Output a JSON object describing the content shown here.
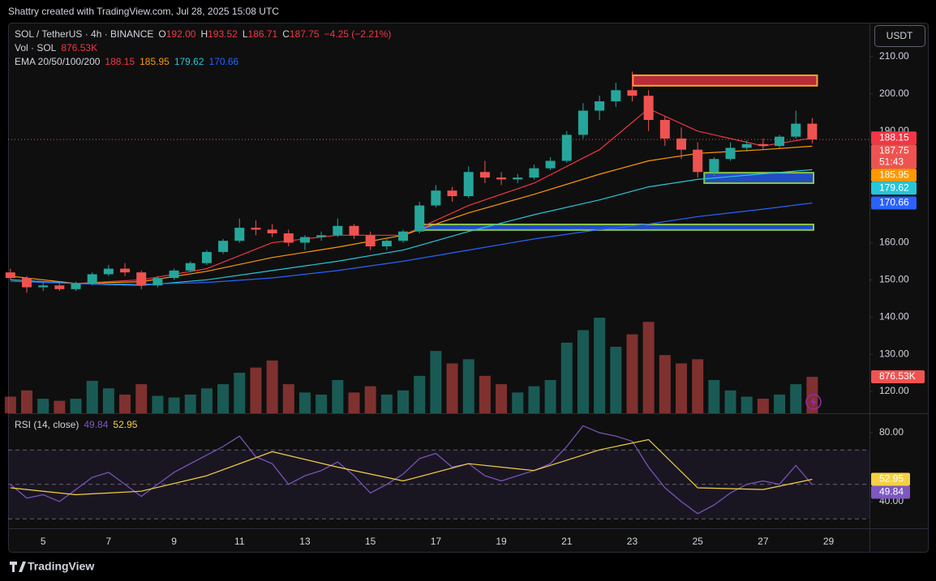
{
  "header": {
    "credit": "Shattry created with TradingView.com, Jul 28, 2025 15:08 UTC"
  },
  "toolbar": {
    "currency": "USDT"
  },
  "footer": {
    "brand": "TradingView"
  },
  "chart_data": [
    {
      "type": "candlestick",
      "legend": {
        "symbol": "SOL / TetherUS · 4h · BINANCE",
        "ohlc": [
          {
            "key": "O",
            "value": "192.00"
          },
          {
            "key": "H",
            "value": "193.52"
          },
          {
            "key": "L",
            "value": "186.71"
          },
          {
            "key": "C",
            "value": "187.75"
          }
        ],
        "change": "−4.25 (−2.21%)",
        "volume_label": "Vol · SOL",
        "ema_label": "EMA 20/50/100/200"
      },
      "countdown": "51:43",
      "xlim": [
        3.93,
        30.25
      ],
      "xticks": [
        5,
        7,
        9,
        11,
        13,
        15,
        17,
        19,
        21,
        23,
        25,
        27,
        29
      ],
      "ylim": [
        114.12,
        219.15
      ],
      "yticks": [
        {
          "value": 120,
          "label": "120.00"
        },
        {
          "value": 130,
          "label": "130.00"
        },
        {
          "value": 140,
          "label": "140.00"
        },
        {
          "value": 150,
          "label": "150.00"
        },
        {
          "value": 160,
          "label": "160.00"
        },
        {
          "value": 170,
          "label": "170.00"
        },
        {
          "value": 180,
          "label": "180.00"
        },
        {
          "value": 190,
          "label": "190.00"
        },
        {
          "value": 200,
          "label": "200.00"
        },
        {
          "value": 210,
          "label": "210.00"
        }
      ],
      "grid": false,
      "up_color": "#26a69a",
      "down_color": "#ef5350",
      "x": [
        4,
        4.5,
        5,
        5.5,
        6,
        6.5,
        7,
        7.5,
        8,
        8.5,
        9,
        9.5,
        10,
        10.5,
        11,
        11.5,
        12,
        12.5,
        13,
        13.5,
        14,
        14.5,
        15,
        15.5,
        16,
        16.5,
        17,
        17.5,
        18,
        18.5,
        19,
        19.5,
        20,
        20.5,
        21,
        21.5,
        22,
        22.5,
        23,
        23.5,
        24,
        24.5,
        25,
        25.5,
        26,
        26.5,
        27,
        27.5,
        28,
        28.5
      ],
      "candles": [
        [
          152,
          153,
          150,
          150.5
        ],
        [
          150.5,
          151,
          146.5,
          148
        ],
        [
          148,
          149.5,
          147,
          148.5
        ],
        [
          148.5,
          149,
          147,
          147.5
        ],
        [
          147.5,
          149.5,
          147,
          149
        ],
        [
          149,
          152,
          148.5,
          151.5
        ],
        [
          151.5,
          154,
          151,
          153
        ],
        [
          153,
          154.5,
          151,
          152
        ],
        [
          152,
          152.5,
          147.5,
          148.5
        ],
        [
          148.5,
          151,
          148,
          150.5
        ],
        [
          150.5,
          153,
          150,
          152.5
        ],
        [
          152.5,
          155,
          152,
          154.5
        ],
        [
          154.5,
          158,
          154,
          157.5
        ],
        [
          157.5,
          161,
          157,
          160.5
        ],
        [
          160.5,
          166.5,
          160,
          164
        ],
        [
          164,
          166,
          162,
          163.5
        ],
        [
          163.5,
          165,
          161.5,
          162.5
        ],
        [
          162.5,
          163.5,
          159,
          160
        ],
        [
          160,
          162,
          158,
          161.5
        ],
        [
          161.5,
          163,
          160.5,
          162
        ],
        [
          162,
          166.5,
          161.5,
          164.5
        ],
        [
          164.5,
          165,
          161,
          162
        ],
        [
          162,
          163,
          158,
          159
        ],
        [
          159,
          161,
          158,
          160.5
        ],
        [
          160.5,
          163.5,
          160,
          163
        ],
        [
          163,
          171,
          162.5,
          170
        ],
        [
          170,
          175.5,
          169.5,
          174
        ],
        [
          174,
          175,
          171,
          172.5
        ],
        [
          172.5,
          180.5,
          172,
          179
        ],
        [
          179,
          182,
          176,
          177.5
        ],
        [
          177.5,
          179,
          175.5,
          177
        ],
        [
          177,
          178.5,
          176,
          177.5
        ],
        [
          177.5,
          181,
          177,
          180
        ],
        [
          180,
          183,
          179.5,
          182
        ],
        [
          182,
          190,
          181.5,
          189
        ],
        [
          189,
          197.5,
          188,
          195.5
        ],
        [
          195.5,
          199.5,
          193,
          198
        ],
        [
          198,
          203,
          196.5,
          201
        ],
        [
          201,
          206,
          198,
          199.5
        ],
        [
          199.5,
          201,
          190,
          193
        ],
        [
          193,
          194,
          186,
          188
        ],
        [
          188,
          191,
          182.5,
          185
        ],
        [
          185,
          187,
          177.5,
          179
        ],
        [
          179,
          183,
          178,
          182.5
        ],
        [
          182.5,
          187,
          182,
          185.5
        ],
        [
          185.5,
          187.5,
          184.5,
          186.5
        ],
        [
          186.5,
          188,
          185,
          186
        ],
        [
          186,
          189,
          185.5,
          188.5
        ],
        [
          188.5,
          195.5,
          188,
          192
        ],
        [
          192,
          193.52,
          186.71,
          187.75
        ]
      ],
      "volume": {
        "lim": [
          0,
          9400
        ],
        "values": [
          400,
          550,
          350,
          300,
          350,
          780,
          600,
          450,
          700,
          420,
          380,
          450,
          600,
          700,
          975,
          1100,
          1270,
          700,
          500,
          450,
          800,
          500,
          650,
          450,
          550,
          900,
          1500,
          1200,
          1300,
          900,
          700,
          500,
          650,
          800,
          1700,
          2000,
          2300,
          1600,
          1900,
          2200,
          1400,
          1200,
          1300,
          800,
          550,
          400,
          350,
          450,
          700,
          876.53
        ],
        "last_label": "876.53K"
      },
      "ema": {
        "x": [
          4,
          6,
          8,
          10,
          12,
          14,
          16,
          18,
          20,
          22,
          23.5,
          25,
          27,
          28.5
        ],
        "series": [
          {
            "color": "#f23645",
            "values": [
              150,
              149,
              150,
              153,
              160,
              162,
              162,
              170,
              176,
              185,
              196,
              190,
              186,
              188.15
            ]
          },
          {
            "color": "#ff9800",
            "values": [
              151,
              149,
              149.5,
              152.3,
              156,
              158.8,
              162,
              168,
              173,
              178.4,
              182,
              184,
              185,
              185.95
            ]
          },
          {
            "color": "#26c6da",
            "values": [
              150,
              149,
              148.5,
              150,
              152.5,
              155,
              158,
              163,
              167.5,
              171.5,
              175,
              177,
              178.5,
              179.62
            ]
          },
          {
            "color": "#2962ff",
            "values": [
              149.6,
              149,
              148.8,
              149.3,
              150.5,
              152.5,
              155,
              158,
              161,
              163.5,
              165,
              167,
              169,
              170.66
            ]
          }
        ]
      },
      "zones": [
        {
          "x": [
            23.02,
            28.65
          ],
          "y": [
            205.0,
            202.2
          ],
          "fill": "rgba(242,54,69,0.75)",
          "stroke": "#f5a623"
        },
        {
          "x": [
            25.2,
            28.54
          ],
          "y": [
            178.8,
            176.0
          ],
          "fill": "rgba(41,98,255,0.75)",
          "stroke": "#8bc34a"
        },
        {
          "x": [
            16.4,
            28.54
          ],
          "y": [
            164.9,
            163.4
          ],
          "fill": "rgba(41,98,255,0.75)",
          "stroke": "#8bc34a"
        }
      ]
    },
    {
      "type": "line",
      "label": "RSI (14, close)",
      "xlim": [
        3.93,
        30.25
      ],
      "ylim": [
        24.47,
        90.35
      ],
      "yticks": [
        {
          "value": 80,
          "label": "80.00"
        },
        {
          "value": 40,
          "label": "40.00"
        }
      ],
      "band": [
        30,
        70
      ],
      "midline": 50,
      "series": [
        {
          "color": "#7e57c2",
          "x": [
            4,
            4.5,
            5,
            5.5,
            6,
            6.5,
            7,
            7.5,
            8,
            8.5,
            9,
            9.5,
            10,
            10.5,
            11,
            11.5,
            12,
            12.5,
            13,
            13.5,
            14,
            14.5,
            15,
            15.5,
            16,
            16.5,
            17,
            17.5,
            18,
            18.5,
            19,
            19.5,
            20,
            20.5,
            21,
            21.5,
            22,
            22.5,
            23,
            23.5,
            24,
            24.5,
            25,
            25.5,
            26,
            26.5,
            27,
            27.5,
            28,
            28.5
          ],
          "values": [
            50,
            42,
            44,
            40,
            47,
            54,
            57,
            50,
            43,
            50,
            57,
            62,
            67,
            72,
            78,
            66,
            62,
            50,
            55,
            58,
            63,
            55,
            45,
            50,
            56,
            65,
            68,
            60,
            62,
            55,
            52,
            55,
            58,
            62,
            72,
            84,
            80,
            78,
            75,
            60,
            48,
            40,
            33,
            38,
            45,
            50,
            52,
            50,
            61,
            49.84
          ]
        },
        {
          "color": "#f5d142",
          "x": [
            4,
            6,
            8,
            10,
            12,
            14,
            16,
            18,
            20,
            22,
            23.5,
            25,
            27,
            28.5
          ],
          "values": [
            48,
            44,
            46,
            55,
            69,
            60,
            52,
            62,
            58,
            70,
            76,
            48,
            47,
            52.95
          ]
        }
      ]
    }
  ]
}
